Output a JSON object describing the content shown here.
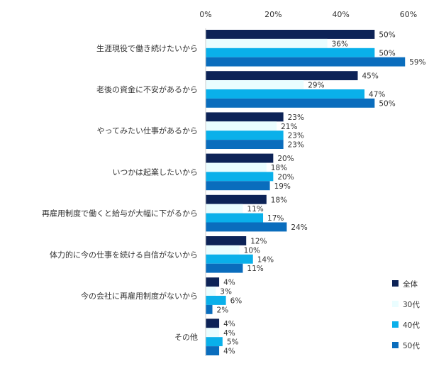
{
  "chart_data": {
    "type": "bar",
    "orientation": "horizontal",
    "title": "",
    "xlabel": "",
    "ylabel": "",
    "xlim": [
      0,
      60
    ],
    "ticks": [
      0,
      20,
      40,
      60
    ],
    "tick_labels": [
      "0%",
      "20%",
      "40%",
      "60%"
    ],
    "value_suffix": "%",
    "grid": false,
    "legend_position": "bottom-right",
    "categories": [
      "生涯現役で働き続けたいから",
      "老後の資金に不安があるから",
      "やってみたい仕事があるから",
      "いつかは起業したいから",
      "再雇用制度で働くと給与が大幅に下がるから",
      "体力的に今の仕事を続ける自信がないから",
      "今の会社に再雇用制度がないから",
      "その他"
    ],
    "series": [
      {
        "name": "全体",
        "color": "#0d2357",
        "values": [
          50,
          45,
          23,
          20,
          18,
          12,
          4,
          4
        ]
      },
      {
        "name": "30代",
        "color": "#eafdff",
        "values": [
          36,
          29,
          21,
          18,
          11,
          10,
          3,
          4
        ]
      },
      {
        "name": "40代",
        "color": "#0ab0ea",
        "values": [
          50,
          47,
          23,
          20,
          17,
          14,
          6,
          5
        ]
      },
      {
        "name": "50代",
        "color": "#0a6dbd",
        "values": [
          59,
          50,
          23,
          19,
          24,
          11,
          2,
          4
        ]
      }
    ]
  }
}
